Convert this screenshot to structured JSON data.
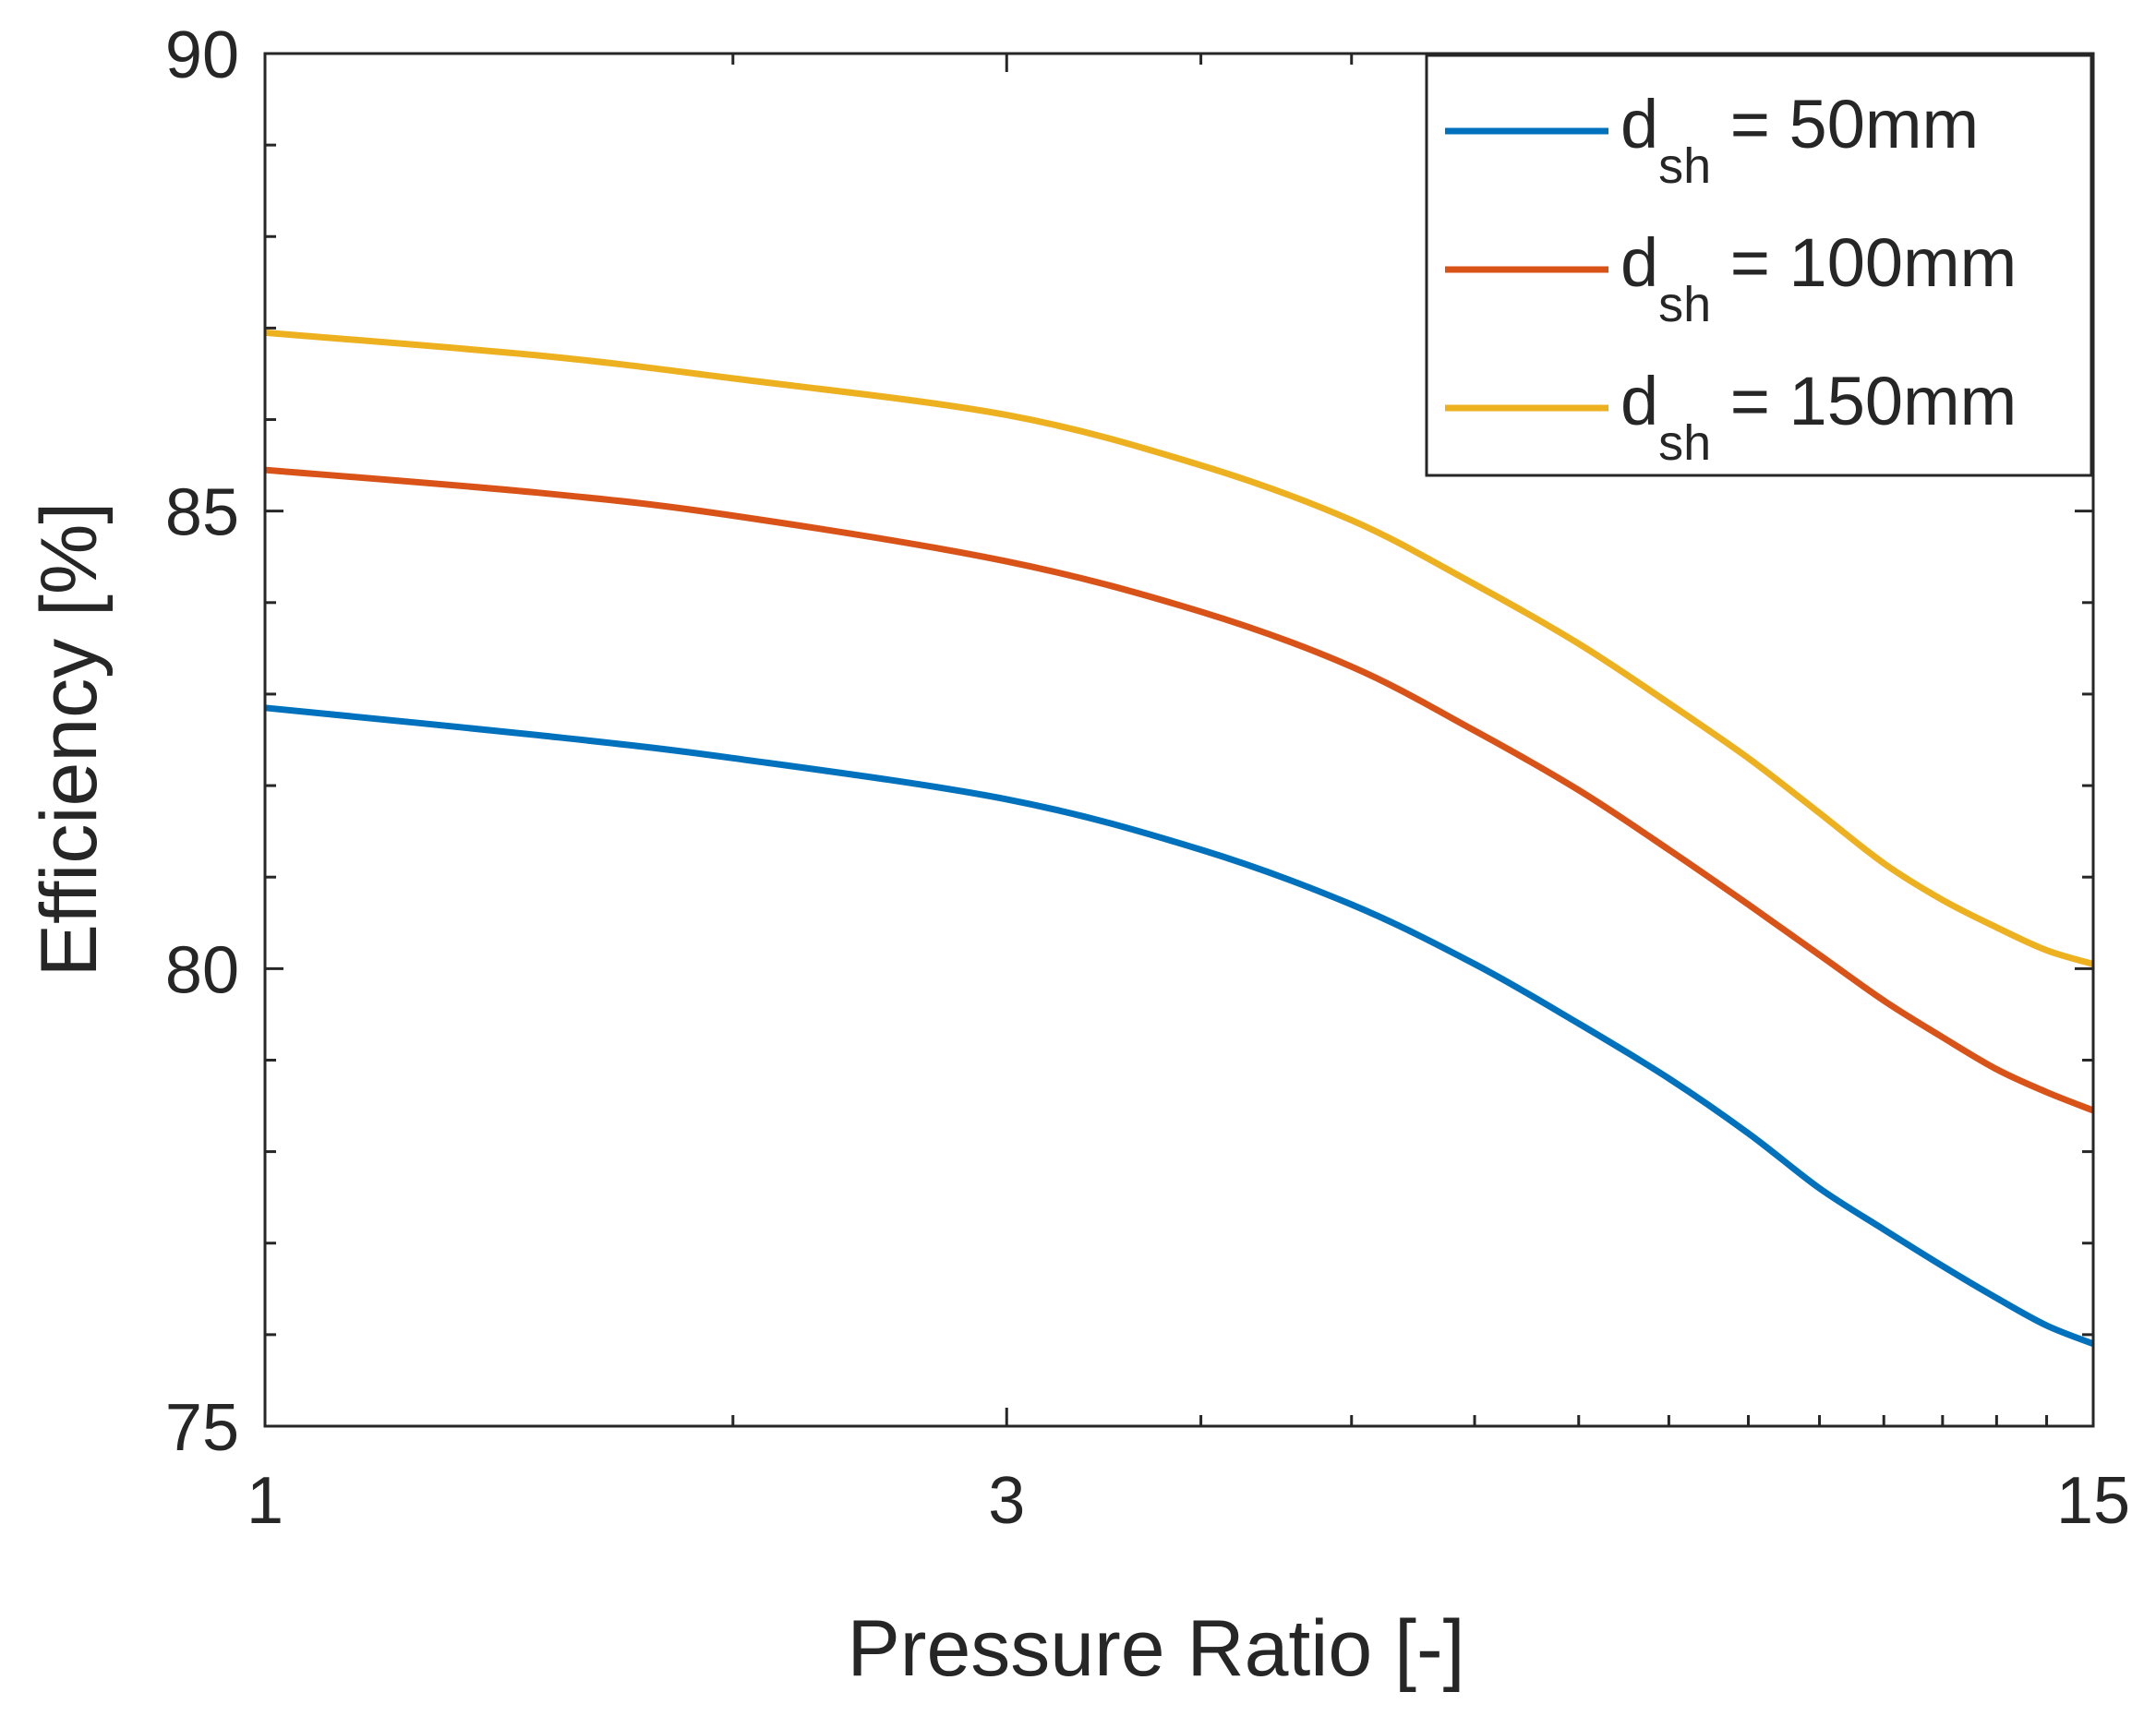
{
  "chart_data": {
    "type": "line",
    "title": "",
    "xlabel": "Pressure Ratio [-]",
    "ylabel": "Efficiency [%]",
    "xscale": "log",
    "xlim": [
      1,
      15
    ],
    "ylim": [
      75,
      90
    ],
    "xticks": [
      1,
      3,
      15
    ],
    "xtick_labels": [
      "1",
      "3",
      "15"
    ],
    "yticks": [
      75,
      80,
      85,
      90
    ],
    "ytick_labels": [
      "75",
      "80",
      "85",
      "90"
    ],
    "legend_position": "top-right",
    "grid": false,
    "x": [
      1,
      1.5,
      2,
      3,
      4,
      5,
      6,
      7,
      8,
      9,
      10,
      11,
      12,
      13,
      14,
      15
    ],
    "series": [
      {
        "name": "d_sh = 50mm",
        "legend_main": "d",
        "legend_sub": "sh",
        "legend_rest": " = 50mm",
        "color": "#0072BD",
        "values": [
          82.85,
          82.55,
          82.3,
          81.85,
          81.3,
          80.7,
          80.05,
          79.4,
          78.8,
          78.2,
          77.6,
          77.15,
          76.75,
          76.4,
          76.1,
          75.9
        ]
      },
      {
        "name": "d_sh = 100mm",
        "legend_main": "d",
        "legend_sub": "sh",
        "legend_rest": " = 100mm",
        "color": "#D95319",
        "values": [
          85.45,
          85.2,
          84.95,
          84.45,
          83.9,
          83.3,
          82.6,
          81.95,
          81.3,
          80.7,
          80.15,
          79.65,
          79.25,
          78.9,
          78.65,
          78.45
        ]
      },
      {
        "name": "d_sh = 150mm",
        "legend_main": "d",
        "legend_sub": "sh",
        "legend_rest": " = 150mm",
        "color": "#EDB120",
        "values": [
          86.95,
          86.7,
          86.45,
          86.05,
          85.5,
          84.9,
          84.2,
          83.55,
          82.9,
          82.3,
          81.7,
          81.15,
          80.75,
          80.45,
          80.2,
          80.05
        ]
      }
    ]
  }
}
